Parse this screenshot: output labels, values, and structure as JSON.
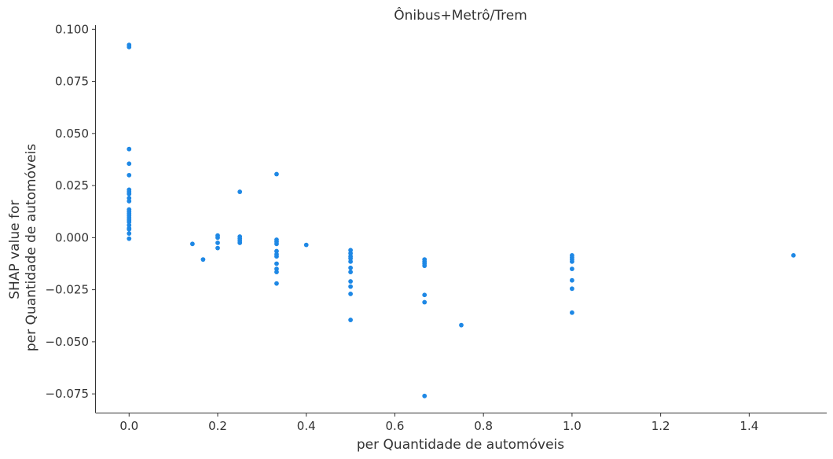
{
  "chart_data": {
    "type": "scatter",
    "title": "Ônibus+Metrô/Trem",
    "xlabel": "per Quantidade de automóveis",
    "ylabel": [
      "SHAP value for",
      "per Quantidade de automóveis"
    ],
    "xlim": [
      -0.075,
      1.575
    ],
    "ylim": [
      -0.084,
      0.102
    ],
    "x_ticks": [
      0.0,
      0.2,
      0.4,
      0.6,
      0.8,
      1.0,
      1.2,
      1.4
    ],
    "x_tick_labels": [
      "0.0",
      "0.2",
      "0.4",
      "0.6",
      "0.8",
      "1.0",
      "1.2",
      "1.4"
    ],
    "y_ticks": [
      0.1,
      0.075,
      0.05,
      0.025,
      0.0,
      -0.025,
      -0.05,
      -0.075
    ],
    "y_tick_labels": [
      "0.100",
      "0.075",
      "0.050",
      "0.025",
      "0.000",
      "−0.025",
      "−0.050",
      "−0.075"
    ],
    "grid": false,
    "point_color": "#1e88e5",
    "points": [
      [
        0.0,
        0.0925
      ],
      [
        0.0,
        0.0915
      ],
      [
        0.0,
        0.0425
      ],
      [
        0.0,
        0.0355
      ],
      [
        0.0,
        0.03
      ],
      [
        0.0,
        0.023
      ],
      [
        0.0,
        0.022
      ],
      [
        0.0,
        0.021
      ],
      [
        0.0,
        0.019
      ],
      [
        0.0,
        0.0175
      ],
      [
        0.0,
        0.0135
      ],
      [
        0.0,
        0.0125
      ],
      [
        0.0,
        0.0115
      ],
      [
        0.0,
        0.0105
      ],
      [
        0.0,
        0.0095
      ],
      [
        0.0,
        0.0085
      ],
      [
        0.0,
        0.0075
      ],
      [
        0.0,
        0.006
      ],
      [
        0.0,
        0.0045
      ],
      [
        0.0,
        0.004
      ],
      [
        0.0,
        0.002
      ],
      [
        0.0,
        -0.0005
      ],
      [
        0.143,
        -0.003
      ],
      [
        0.167,
        -0.0105
      ],
      [
        0.2,
        0.001
      ],
      [
        0.2,
        0.0
      ],
      [
        0.2,
        -0.0025
      ],
      [
        0.2,
        -0.005
      ],
      [
        0.25,
        0.022
      ],
      [
        0.25,
        0.0005
      ],
      [
        0.25,
        -0.0005
      ],
      [
        0.25,
        -0.0015
      ],
      [
        0.25,
        -0.0025
      ],
      [
        0.333,
        0.0305
      ],
      [
        0.333,
        -0.001
      ],
      [
        0.333,
        -0.002
      ],
      [
        0.333,
        -0.003
      ],
      [
        0.333,
        -0.0065
      ],
      [
        0.333,
        -0.008
      ],
      [
        0.333,
        -0.009
      ],
      [
        0.333,
        -0.0125
      ],
      [
        0.333,
        -0.015
      ],
      [
        0.333,
        -0.0165
      ],
      [
        0.333,
        -0.022
      ],
      [
        0.4,
        -0.0035
      ],
      [
        0.5,
        -0.006
      ],
      [
        0.5,
        -0.0075
      ],
      [
        0.5,
        -0.009
      ],
      [
        0.5,
        -0.01
      ],
      [
        0.5,
        -0.0115
      ],
      [
        0.5,
        -0.0145
      ],
      [
        0.5,
        -0.0165
      ],
      [
        0.5,
        -0.021
      ],
      [
        0.5,
        -0.0235
      ],
      [
        0.5,
        -0.027
      ],
      [
        0.5,
        -0.0395
      ],
      [
        0.667,
        -0.0105
      ],
      [
        0.667,
        -0.0115
      ],
      [
        0.667,
        -0.0125
      ],
      [
        0.667,
        -0.0135
      ],
      [
        0.667,
        -0.0275
      ],
      [
        0.667,
        -0.031
      ],
      [
        0.667,
        -0.076
      ],
      [
        0.75,
        -0.042
      ],
      [
        1.0,
        -0.0085
      ],
      [
        1.0,
        -0.0095
      ],
      [
        1.0,
        -0.0105
      ],
      [
        1.0,
        -0.0115
      ],
      [
        1.0,
        -0.015
      ],
      [
        1.0,
        -0.0205
      ],
      [
        1.0,
        -0.0245
      ],
      [
        1.0,
        -0.036
      ],
      [
        1.5,
        -0.0085
      ]
    ]
  }
}
